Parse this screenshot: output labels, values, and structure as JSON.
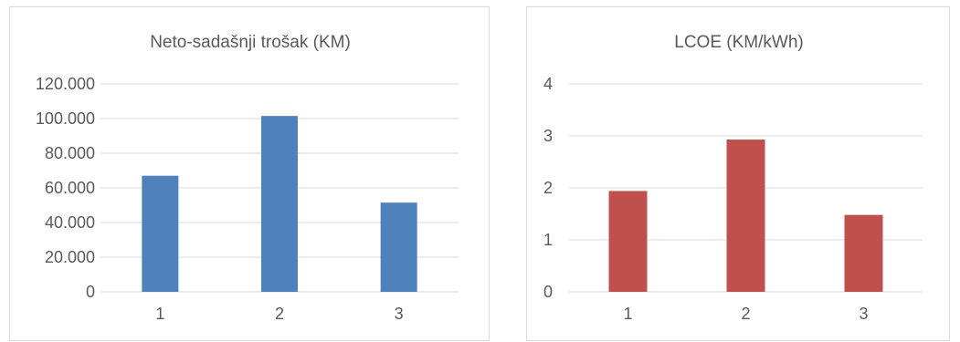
{
  "chart_data": [
    {
      "type": "bar",
      "title": "Neto-sadašnji trošak (KM)",
      "xlabel": "",
      "ylabel": "",
      "categories": [
        "1",
        "2",
        "3"
      ],
      "values": [
        67000,
        101500,
        51500
      ],
      "ylim": [
        0,
        120000
      ],
      "yticks": [
        "0",
        "20.000",
        "40.000",
        "60.000",
        "80.000",
        "100.000",
        "120.000"
      ],
      "color": "#4f81bd",
      "grid": true,
      "legend": "none"
    },
    {
      "type": "bar",
      "title": "LCOE (KM/kWh)",
      "xlabel": "",
      "ylabel": "",
      "categories": [
        "1",
        "2",
        "3"
      ],
      "values": [
        1.94,
        2.93,
        1.48
      ],
      "ylim": [
        0,
        4
      ],
      "yticks": [
        "0",
        "1",
        "2",
        "3",
        "4"
      ],
      "color": "#c0504d",
      "grid": true,
      "legend": "none"
    }
  ]
}
